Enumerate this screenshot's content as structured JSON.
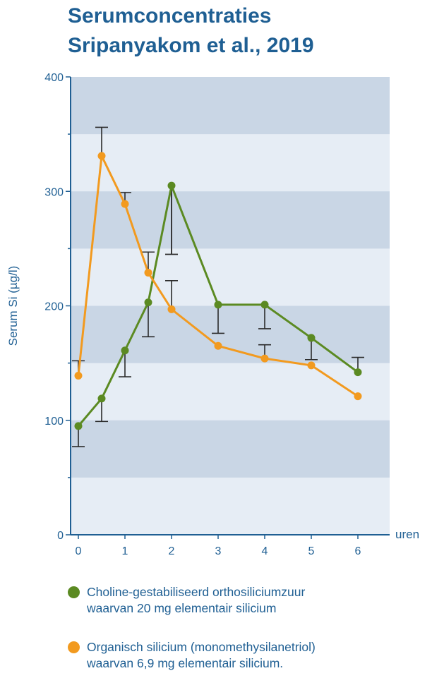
{
  "title": {
    "line1": "Serumconcentraties",
    "line2": "Sripanyakom et al., 2019"
  },
  "legend": [
    {
      "name": "Choline-gestabiliseerd orthosiliciumzuur",
      "line2": "waarvan 20 mg elementair silicium",
      "color": "#5b8a22"
    },
    {
      "name": "Organisch silicium (monomethysilanetriol)",
      "line2": "waarvan 6,9 mg elementair silicium.",
      "color": "#f29a1f"
    }
  ],
  "chart_data": {
    "type": "line",
    "title": "Serumconcentraties Sripanyakom et al., 2019",
    "xlabel": "uren",
    "ylabel": "Serum Si (µg/l)",
    "xlim": [
      0,
      6
    ],
    "ylim": [
      0,
      400
    ],
    "x_ticks": [
      "0",
      "1",
      "2",
      "3",
      "4",
      "5",
      "6"
    ],
    "y_ticks": [
      "0",
      "100",
      "200",
      "300",
      "400"
    ],
    "grid": "alternating horizontal bands",
    "series": [
      {
        "name": "Choline-gestabiliseerd orthosiliciumzuur",
        "color": "#5b8a22",
        "x": [
          0,
          0.5,
          1,
          1.5,
          2,
          3,
          4,
          5,
          6
        ],
        "y": [
          95,
          119,
          161,
          203,
          305,
          201,
          201,
          172,
          142
        ],
        "error": [
          18,
          20,
          23,
          30,
          60,
          25,
          21,
          19,
          13
        ]
      },
      {
        "name": "Organisch silicium (monomethysilanetriol)",
        "color": "#f29a1f",
        "x": [
          0,
          0.5,
          1,
          1.5,
          2,
          3,
          4,
          5,
          6
        ],
        "y": [
          139,
          331,
          289,
          229,
          197,
          165,
          154,
          148,
          121
        ],
        "error": [
          13,
          25,
          10,
          18,
          25,
          null,
          12,
          null,
          null
        ]
      }
    ]
  }
}
